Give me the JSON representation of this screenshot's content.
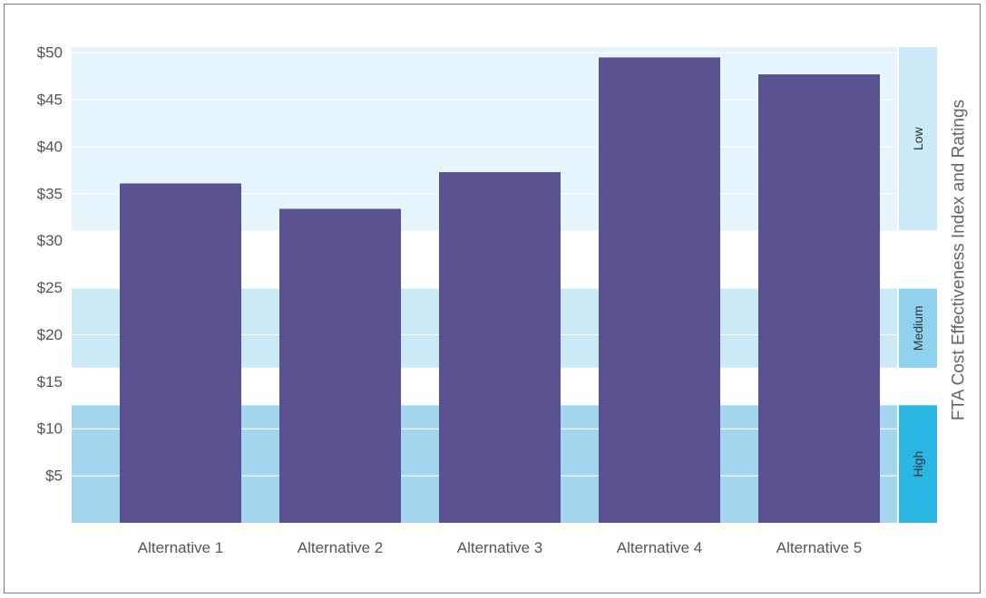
{
  "chart_data": {
    "type": "bar",
    "title": "",
    "xlabel": "",
    "ylabel": "",
    "ylim": [
      0,
      50
    ],
    "yticks": [
      5,
      10,
      15,
      20,
      25,
      30,
      35,
      40,
      45,
      50
    ],
    "ytick_labels": [
      "$5",
      "$10",
      "$15",
      "$20",
      "$25",
      "$30",
      "$35",
      "$40",
      "$45",
      "$50"
    ],
    "categories": [
      "Alternative 1",
      "Alternative 2",
      "Alternative 3",
      "Alternative 4",
      "Alternative 5"
    ],
    "values": [
      36.1,
      33.4,
      37.3,
      49.5,
      47.7
    ],
    "bar_color": "#5a5290",
    "grid": true,
    "rating_bands": [
      {
        "label": "High",
        "from": 0,
        "to": 12.5,
        "band_color": "#a3d6ee",
        "tab_color": "#29b6e3"
      },
      {
        "label": "Medium",
        "from": 16.5,
        "to": 24.9,
        "band_color": "#cbe9f6",
        "tab_color": "#8fd1ee"
      },
      {
        "label": "Low",
        "from": 31.1,
        "to": 50.6,
        "band_color": "#e6f4fc",
        "tab_color": "#cbe9f6"
      }
    ],
    "side_title": "FTA Cost Effectiveness Index and Ratings"
  }
}
